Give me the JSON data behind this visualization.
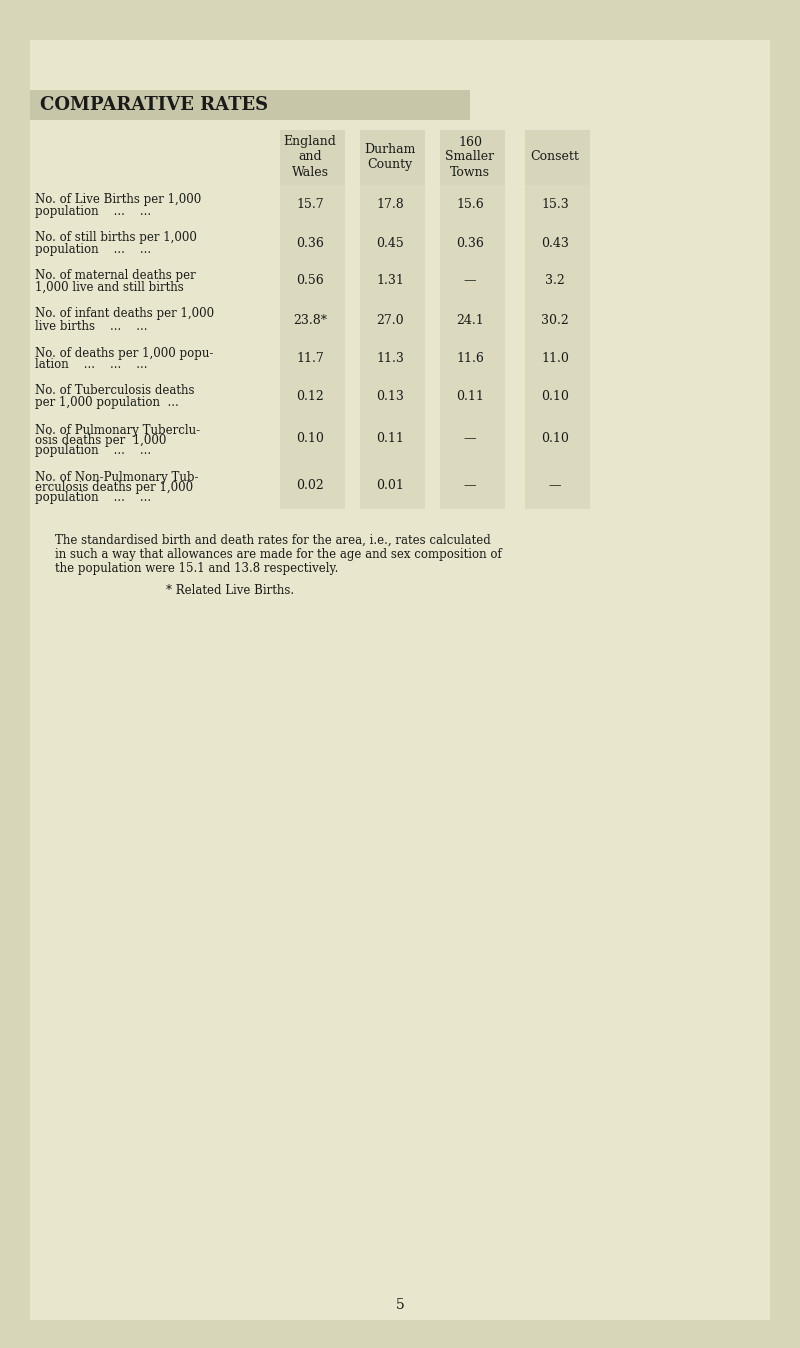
{
  "title": "COMPARATIVE RATES",
  "background_color": "#e8e6cc",
  "page_background": "#d8d6b8",
  "col_headers": [
    "England\nand\nWales",
    "Durham\nCounty",
    "160\nSmaller\nTowns",
    "Consett"
  ],
  "rows": [
    {
      "label_line1": "No. of Live Births per 1,000",
      "label_line2": "population    ...    ...",
      "values": [
        "15.7",
        "17.8",
        "15.6",
        "15.3"
      ]
    },
    {
      "label_line1": "No. of still births per 1,000",
      "label_line2": "population    ...    ...",
      "values": [
        "0.36",
        "0.45",
        "0.36",
        "0.43"
      ]
    },
    {
      "label_line1": "No. of maternal deaths per",
      "label_line2": "1,000 live and still births",
      "values": [
        "0.56",
        "1.31",
        "—",
        "3.2"
      ]
    },
    {
      "label_line1": "No. of infant deaths per 1,000",
      "label_line2": "live births    ...    ...",
      "values": [
        "23.8*",
        "27.0",
        "24.1",
        "30.2"
      ]
    },
    {
      "label_line1": "No. of deaths per 1,000 popu-",
      "label_line2": "lation    ...    ...    ...",
      "values": [
        "11.7",
        "11.3",
        "11.6",
        "11.0"
      ]
    },
    {
      "label_line1": "No. of Tuberculosis deaths",
      "label_line2": "per 1,000 population  ...",
      "values": [
        "0.12",
        "0.13",
        "0.11",
        "0.10"
      ]
    },
    {
      "label_line1": "No. of Pulmonary Tuberclu-",
      "label_line2": "osis deaths per  1,000",
      "label_line3": "population    ...    ...",
      "values": [
        "0.10",
        "0.11",
        "—",
        "0.10"
      ]
    },
    {
      "label_line1": "No. of Non-Pulmonary Tub-",
      "label_line2": "erculosis deaths per 1,000",
      "label_line3": "population    ...    ...",
      "values": [
        "0.02",
        "0.01",
        "—",
        "—"
      ]
    }
  ],
  "footnote_line1": "The standardised birth and death rates for the area, i.e., rates calculated",
  "footnote_line2": "in such a way that allowances are made for the age and sex composition of",
  "footnote_line3": "the population were 15.1 and 13.8 respectively.",
  "footnote2": "* Related Live Births.",
  "page_number": "5",
  "header_bg_color": "#c8c6a8",
  "row_shaded_color": "#c8c6aa",
  "text_color": "#1a1a1a"
}
